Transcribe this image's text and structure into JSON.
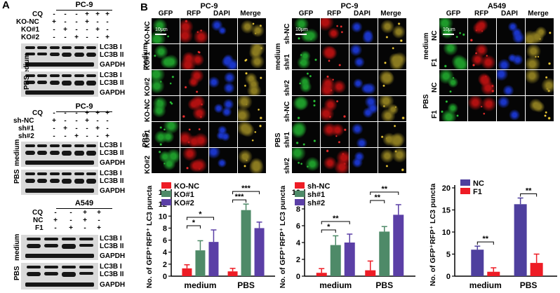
{
  "panel_a": {
    "letter": "A",
    "blots": [
      {
        "title": "PC-9",
        "treatment_labels": [
          "CQ",
          "KO-NC",
          "KO#1",
          "KO#2"
        ],
        "signs": [
          [
            "-",
            "-",
            "-",
            "+",
            "+",
            "+"
          ],
          [
            "+",
            "-",
            "-",
            "+",
            "-",
            "-"
          ],
          [
            "-",
            "+",
            "-",
            "-",
            "+",
            "-"
          ],
          [
            "-",
            "-",
            "+",
            "-",
            "-",
            "+"
          ]
        ],
        "groups": [
          {
            "name": "medium",
            "rows": [
              "LC3B I",
              "LC3B II",
              "GAPDH"
            ]
          },
          {
            "name": "PBS",
            "rows": [
              "LC3B I",
              "LC3B II",
              "GAPDH"
            ]
          }
        ]
      },
      {
        "title": "PC-9",
        "treatment_labels": [
          "CQ",
          "sh-NC",
          "sh#1",
          "sh#2"
        ],
        "signs": [
          [
            "-",
            "-",
            "-",
            "+",
            "+",
            "+"
          ],
          [
            "+",
            "-",
            "-",
            "+",
            "-",
            "-"
          ],
          [
            "-",
            "+",
            "-",
            "-",
            "+",
            "-"
          ],
          [
            "-",
            "-",
            "+",
            "-",
            "-",
            "+"
          ]
        ],
        "groups": [
          {
            "name": "medium",
            "rows": [
              "LC3B I",
              "LC3B II",
              "GAPDH"
            ]
          },
          {
            "name": "PBS",
            "rows": [
              "LC3B I",
              "LC3B II",
              "GAPDH"
            ]
          }
        ]
      },
      {
        "title": "A549",
        "treatment_labels": [
          "CQ",
          "NC",
          "F1"
        ],
        "signs": [
          [
            "-",
            "-",
            "+",
            "+"
          ],
          [
            "+",
            "-",
            "+",
            "-"
          ],
          [
            "-",
            "+",
            "-",
            "+"
          ]
        ],
        "groups": [
          {
            "name": "medium",
            "rows": [
              "LC3B I",
              "LC3B II",
              "GAPDH"
            ]
          },
          {
            "name": "PBS",
            "rows": [
              "LC3B I",
              "LC3B II",
              "GAPDH"
            ]
          }
        ]
      }
    ]
  },
  "panel_b": {
    "letter": "B",
    "channels": [
      "GFP",
      "RFP",
      "DAPI",
      "Merge"
    ],
    "scale": "10μm",
    "micro": [
      {
        "title": "PC-9",
        "groups": [
          "medium",
          "PBS"
        ],
        "rows": [
          "KO-NC",
          "KO#1",
          "KO#2",
          "KO-NC",
          "KO#1",
          "KO#2"
        ]
      },
      {
        "title": "PC-9",
        "groups": [
          "medium",
          "PBS"
        ],
        "rows": [
          "sh-NC",
          "sh#1",
          "sh#2",
          "sh-NC",
          "sh#1",
          "sh#2"
        ]
      },
      {
        "title": "A549",
        "groups": [
          "medium",
          "PBS"
        ],
        "rows": [
          "NC",
          "F1",
          "NC",
          "F1"
        ]
      }
    ]
  },
  "chart_data": [
    {
      "type": "bar",
      "title": "",
      "xlabel": "",
      "ylabel": "No. of GFP⁺RFP⁺ LC3 puncta",
      "categories": [
        "medium",
        "PBS"
      ],
      "ylim": [
        0,
        14
      ],
      "yticks": [
        0,
        2,
        4,
        6,
        8,
        10,
        12,
        14
      ],
      "series": [
        {
          "name": "KO-NC",
          "color": "#ee1c25",
          "values": [
            1.3,
            0.8
          ],
          "errors": [
            0.6,
            0.5
          ]
        },
        {
          "name": "KO#1",
          "color": "#4e8a68",
          "values": [
            4.3,
            11.0
          ],
          "errors": [
            1.6,
            1.0
          ]
        },
        {
          "name": "KO#2",
          "color": "#5b3fa6",
          "values": [
            5.7,
            8.0
          ],
          "errors": [
            2.0,
            1.0
          ]
        }
      ],
      "significance": [
        {
          "group": "medium",
          "from": 0,
          "to": 1,
          "label": "*"
        },
        {
          "group": "medium",
          "from": 0,
          "to": 2,
          "label": "*"
        },
        {
          "group": "PBS",
          "from": 0,
          "to": 1,
          "label": "***"
        },
        {
          "group": "PBS",
          "from": 0,
          "to": 2,
          "label": "***"
        }
      ],
      "legend": "top-left"
    },
    {
      "type": "bar",
      "title": "",
      "xlabel": "",
      "ylabel": "No. of GFP⁺RFP⁺ LC3 puncta",
      "categories": [
        "medium",
        "PBS"
      ],
      "ylim": [
        0,
        10
      ],
      "yticks": [
        0,
        2,
        4,
        6,
        8,
        10
      ],
      "series": [
        {
          "name": "sh-NC",
          "color": "#ee1c25",
          "values": [
            0.4,
            0.7
          ],
          "errors": [
            0.5,
            1.1
          ]
        },
        {
          "name": "sh#1",
          "color": "#4e8a68",
          "values": [
            3.7,
            5.3
          ],
          "errors": [
            1.1,
            0.6
          ]
        },
        {
          "name": "sh#2",
          "color": "#5b3fa6",
          "values": [
            4.0,
            7.3
          ],
          "errors": [
            1.0,
            1.2
          ]
        }
      ],
      "significance": [
        {
          "group": "medium",
          "from": 0,
          "to": 1,
          "label": "*"
        },
        {
          "group": "medium",
          "from": 0,
          "to": 2,
          "label": "**"
        },
        {
          "group": "PBS",
          "from": 0,
          "to": 1,
          "label": "**"
        },
        {
          "group": "PBS",
          "from": 0,
          "to": 2,
          "label": "**"
        }
      ],
      "legend": "top-left"
    },
    {
      "type": "bar",
      "title": "",
      "xlabel": "",
      "ylabel": "No. of GFP⁺RFP⁺ LC3 puncta",
      "categories": [
        "medium",
        "PBS"
      ],
      "ylim": [
        0,
        20
      ],
      "yticks": [
        0,
        5,
        10,
        15,
        20
      ],
      "series": [
        {
          "name": "NC",
          "color": "#4e3f9e",
          "values": [
            6.0,
            16.3
          ],
          "errors": [
            0.8,
            1.4
          ]
        },
        {
          "name": "F1",
          "color": "#ee1c25",
          "values": [
            1.0,
            3.0
          ],
          "errors": [
            0.9,
            2.0
          ]
        }
      ],
      "significance": [
        {
          "group": "medium",
          "from": 0,
          "to": 1,
          "label": "**"
        },
        {
          "group": "PBS",
          "from": 0,
          "to": 1,
          "label": "**"
        }
      ],
      "legend": "top-left"
    }
  ]
}
